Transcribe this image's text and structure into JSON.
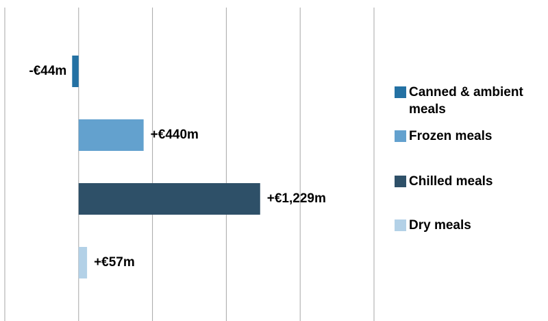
{
  "chart_data": {
    "type": "bar",
    "orientation": "horizontal",
    "categories": [
      "Canned & ambient meals",
      "Frozen meals",
      "Chilled meals",
      "Dry meals"
    ],
    "values": [
      -44,
      440,
      1229,
      57
    ],
    "value_labels": [
      "-€44m",
      "+€440m",
      "+€1,229m",
      "+€57m"
    ],
    "colors": [
      "#2471a3",
      "#63a1ce",
      "#2e5068",
      "#b3d1e7"
    ],
    "xlim": [
      -500,
      2000
    ],
    "xticks": [
      -500,
      0,
      500,
      1000,
      1500,
      2000
    ],
    "grid": true,
    "legend": "right"
  }
}
